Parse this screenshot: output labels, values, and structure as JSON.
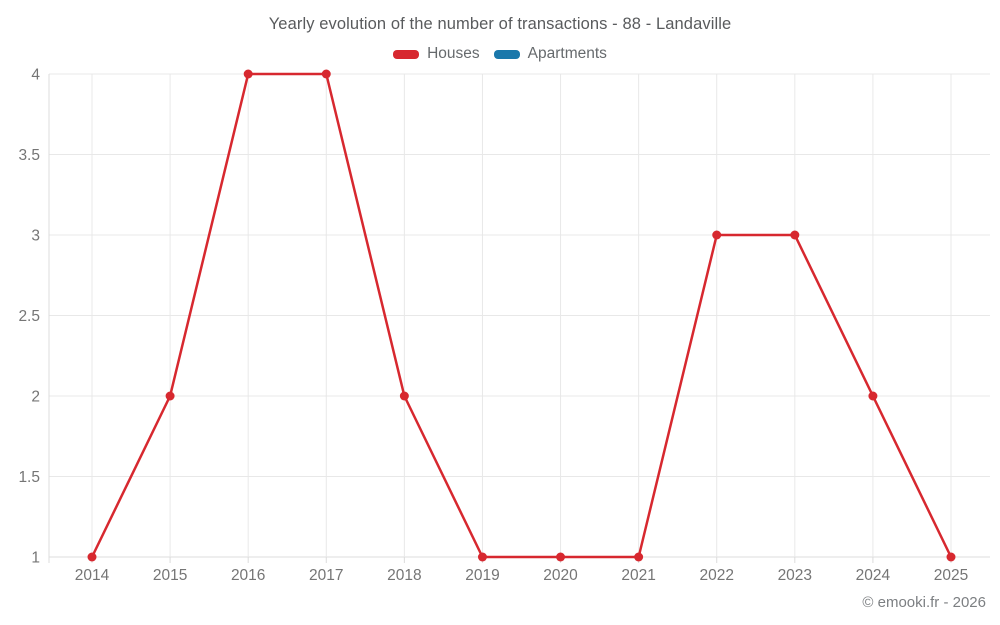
{
  "title": "Yearly evolution of the number of transactions - 88 - Landaville",
  "legend": {
    "items": [
      {
        "label": "Houses",
        "color": "#d7282f"
      },
      {
        "label": "Apartments",
        "color": "#1a78ab"
      }
    ]
  },
  "copyright": "© emooki.fr - 2026",
  "colors": {
    "houses": "#d7282f",
    "apartments": "#1a78ab",
    "gridline": "#e8e8e8",
    "axis_line": "#dcdcdc",
    "tick_label": "#757575"
  },
  "chart_data": {
    "type": "line",
    "title": "Yearly evolution of the number of transactions - 88 - Landaville",
    "categories": [
      "2014",
      "2015",
      "2016",
      "2017",
      "2018",
      "2019",
      "2020",
      "2021",
      "2022",
      "2023",
      "2024",
      "2025"
    ],
    "series": [
      {
        "name": "Houses",
        "color": "#d7282f",
        "values": [
          1,
          2,
          4,
          4,
          2,
          1,
          1,
          1,
          3,
          3,
          2,
          1
        ]
      },
      {
        "name": "Apartments",
        "color": "#1a78ab",
        "values": []
      }
    ],
    "xlabel": "",
    "ylabel": "",
    "ylim": [
      1,
      4
    ],
    "yticks": [
      1,
      1.5,
      2,
      2.5,
      3,
      3.5,
      4
    ],
    "grid": true,
    "legend_position": "top",
    "marker": "circle"
  }
}
